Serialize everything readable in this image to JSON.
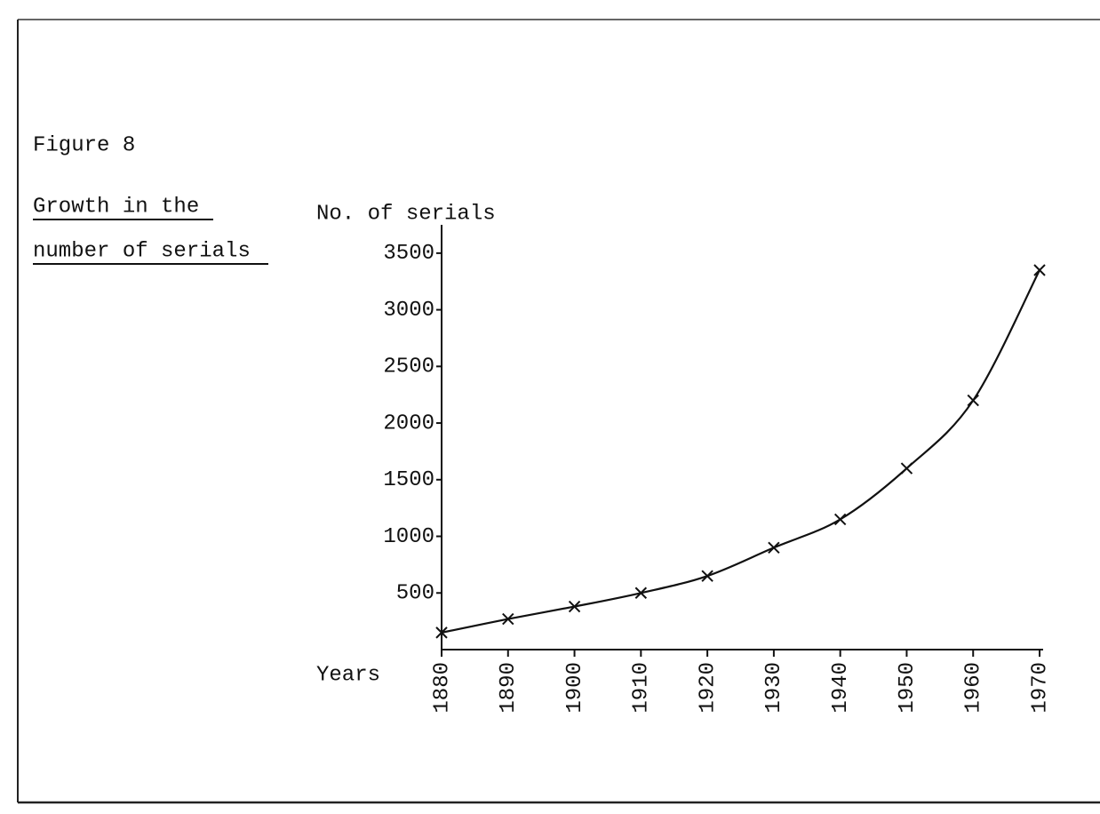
{
  "chart_data": {
    "type": "line",
    "figure_label": "Figure 8",
    "title": [
      "Growth in the",
      "number of serials"
    ],
    "ylabel": "No. of serials",
    "xlabel": "Years",
    "x": [
      1880,
      1890,
      1900,
      1910,
      1920,
      1930,
      1940,
      1950,
      1960,
      1970
    ],
    "series": [
      {
        "name": "Serials",
        "color": "#111111",
        "values": [
          150,
          270,
          380,
          500,
          650,
          900,
          1150,
          1600,
          2200,
          3350
        ]
      }
    ],
    "xlim": [
      1880,
      1970
    ],
    "xticks": [
      1880,
      1890,
      1900,
      1910,
      1920,
      1930,
      1940,
      1950,
      1960,
      1970
    ],
    "ylim": [
      0,
      3750
    ],
    "yticks": [
      500,
      1000,
      1500,
      2000,
      2500,
      3000,
      3500
    ]
  }
}
